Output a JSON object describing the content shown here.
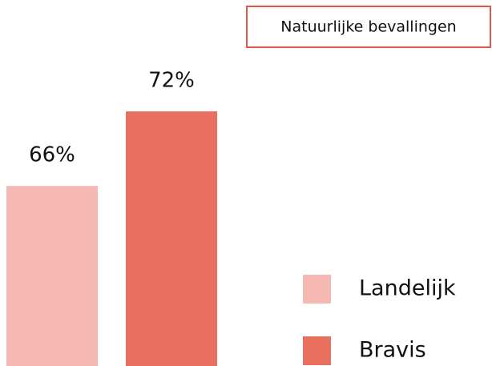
{
  "chart_data": {
    "type": "bar",
    "title": "Natuurlijke bevallingen",
    "series": [
      {
        "name": "Landelijk",
        "color": "#f5b8b2",
        "values": [
          66
        ],
        "value_labels": [
          "66%"
        ]
      },
      {
        "name": "Bravis",
        "color": "#e9705f",
        "values": [
          72
        ],
        "value_labels": [
          "72%"
        ]
      }
    ],
    "ylim": [
      51.5,
      80
    ],
    "legend": "bottom-right"
  }
}
